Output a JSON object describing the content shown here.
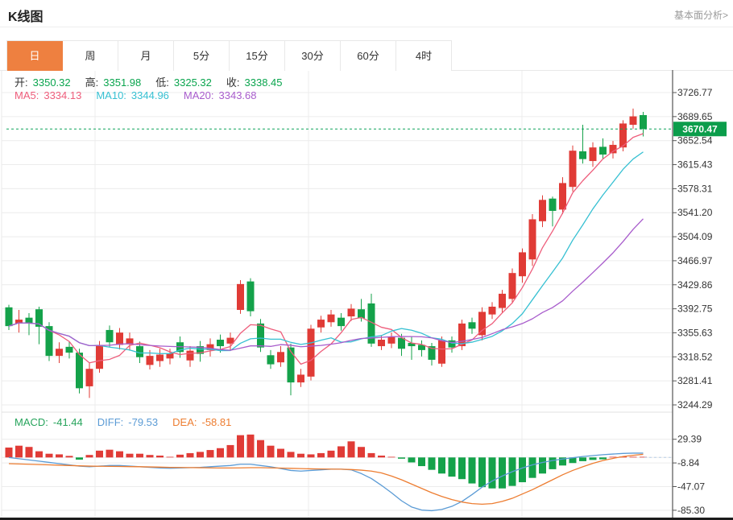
{
  "header": {
    "title": "K线图",
    "link": "基本面分析>"
  },
  "tabs": {
    "active_index": 0,
    "items": [
      {
        "label": "日"
      },
      {
        "label": "周"
      },
      {
        "label": "月"
      },
      {
        "label": "5分"
      },
      {
        "label": "15分"
      },
      {
        "label": "30分"
      },
      {
        "label": "60分"
      },
      {
        "label": "4时"
      }
    ]
  },
  "ohlc_legend": {
    "items": [
      {
        "label": "开:",
        "value": "3350.32"
      },
      {
        "label": "高:",
        "value": "3351.98"
      },
      {
        "label": "低:",
        "value": "3325.32"
      },
      {
        "label": "收:",
        "value": "3338.45"
      }
    ],
    "value_color": "#0aa54e"
  },
  "ma_legend": {
    "items": [
      {
        "label": "MA5:",
        "value": "3334.13",
        "color": "#ee5d7b"
      },
      {
        "label": "MA10:",
        "value": "3344.96",
        "color": "#36c0d2"
      },
      {
        "label": "MA20:",
        "value": "3343.68",
        "color": "#a85ccc"
      }
    ]
  },
  "macd_legend": {
    "items": [
      {
        "label": "MACD:",
        "value": "-41.44",
        "color": "#27a45c"
      },
      {
        "label": "DIFF:",
        "value": "-79.53",
        "color": "#5b9bd5"
      },
      {
        "label": "DEA:",
        "value": "-58.81",
        "color": "#ed7d31"
      }
    ]
  },
  "price_tag": {
    "value": "3670.47"
  },
  "chart_data": {
    "type": "candlestick+macd",
    "up_means_red": true,
    "price_axis": {
      "labels": [
        "3726.77",
        "3689.65",
        "3652.54",
        "3615.43",
        "3578.31",
        "3541.20",
        "3504.09",
        "3466.97",
        "3429.86",
        "3392.75",
        "3355.63",
        "3318.52",
        "3281.41",
        "3244.29"
      ],
      "range": [
        3244.29,
        3726.77
      ]
    },
    "macd_axis": {
      "labels": [
        "29.39",
        "-8.84",
        "-47.07",
        "-85.30"
      ],
      "values": [
        29.39,
        -8.84,
        -47.07,
        -85.3
      ]
    },
    "current_price": 3670.47,
    "candles_ohlc": [
      [
        3395,
        3399,
        3360,
        3366
      ],
      [
        3370,
        3391,
        3356,
        3376
      ],
      [
        3379,
        3386,
        3352,
        3370
      ],
      [
        3392,
        3396,
        3338,
        3365
      ],
      [
        3366,
        3372,
        3312,
        3320
      ],
      [
        3320,
        3341,
        3309,
        3331
      ],
      [
        3334,
        3342,
        3316,
        3325
      ],
      [
        3325,
        3331,
        3262,
        3270
      ],
      [
        3273,
        3310,
        3255,
        3300
      ],
      [
        3300,
        3343,
        3294,
        3337
      ],
      [
        3360,
        3367,
        3334,
        3341
      ],
      [
        3337,
        3363,
        3330,
        3356
      ],
      [
        3338,
        3356,
        3328,
        3347
      ],
      [
        3335,
        3342,
        3309,
        3318
      ],
      [
        3306,
        3329,
        3299,
        3320
      ],
      [
        3312,
        3331,
        3303,
        3322
      ],
      [
        3316,
        3331,
        3307,
        3324
      ],
      [
        3341,
        3350,
        3317,
        3326
      ],
      [
        3313,
        3335,
        3303,
        3328
      ],
      [
        3335,
        3343,
        3311,
        3323
      ],
      [
        3329,
        3347,
        3319,
        3338
      ],
      [
        3345,
        3353,
        3325,
        3335
      ],
      [
        3339,
        3356,
        3329,
        3348
      ],
      [
        3391,
        3437,
        3385,
        3431
      ],
      [
        3435,
        3440,
        3381,
        3389
      ],
      [
        3370,
        3377,
        3326,
        3333
      ],
      [
        3321,
        3329,
        3300,
        3307
      ],
      [
        3310,
        3335,
        3303,
        3326
      ],
      [
        3333,
        3339,
        3259,
        3279
      ],
      [
        3279,
        3300,
        3272,
        3291
      ],
      [
        3288,
        3368,
        3282,
        3362
      ],
      [
        3364,
        3382,
        3356,
        3376
      ],
      [
        3372,
        3391,
        3365,
        3384
      ],
      [
        3379,
        3386,
        3359,
        3366
      ],
      [
        3381,
        3400,
        3374,
        3393
      ],
      [
        3392,
        3408,
        3373,
        3378
      ],
      [
        3401,
        3416,
        3334,
        3339
      ],
      [
        3335,
        3352,
        3329,
        3345
      ],
      [
        3339,
        3356,
        3332,
        3349
      ],
      [
        3348,
        3354,
        3320,
        3331
      ],
      [
        3340,
        3350,
        3314,
        3335
      ],
      [
        3337,
        3344,
        3319,
        3329
      ],
      [
        3335,
        3340,
        3305,
        3314
      ],
      [
        3308,
        3350,
        3303,
        3344
      ],
      [
        3344,
        3350,
        3325,
        3333
      ],
      [
        3335,
        3376,
        3329,
        3370
      ],
      [
        3372,
        3379,
        3354,
        3362
      ],
      [
        3352,
        3395,
        3344,
        3388
      ],
      [
        3384,
        3403,
        3377,
        3396
      ],
      [
        3394,
        3422,
        3387,
        3416
      ],
      [
        3408,
        3455,
        3401,
        3448
      ],
      [
        3443,
        3486,
        3433,
        3480
      ],
      [
        3469,
        3539,
        3459,
        3531
      ],
      [
        3528,
        3568,
        3519,
        3561
      ],
      [
        3563,
        3566,
        3520,
        3544
      ],
      [
        3546,
        3596,
        3539,
        3587
      ],
      [
        3581,
        3645,
        3574,
        3637
      ],
      [
        3636,
        3677,
        3617,
        3624
      ],
      [
        3621,
        3650,
        3612,
        3642
      ],
      [
        3643,
        3656,
        3624,
        3631
      ],
      [
        3633,
        3652,
        3625,
        3646
      ],
      [
        3642,
        3684,
        3636,
        3679
      ],
      [
        3677,
        3702,
        3671,
        3690
      ],
      [
        3692,
        3697,
        3659,
        3670.47
      ]
    ],
    "ma_periods": [
      5,
      10,
      20
    ],
    "macd": {
      "hist": [
        16,
        19,
        17,
        10,
        6,
        5,
        2.5,
        -3.5,
        4,
        11,
        12.5,
        10,
        6,
        6,
        4,
        3,
        0.5,
        4.5,
        7,
        9,
        12,
        15,
        20,
        36,
        37,
        28,
        19,
        14,
        9,
        6,
        5,
        7,
        11,
        18,
        26,
        17,
        7,
        3,
        1,
        -2,
        -8,
        -14,
        -20,
        -26,
        -31,
        -35,
        -42,
        -48,
        -50,
        -50,
        -46,
        -40,
        -33,
        -26,
        -19,
        -13,
        -9,
        -6,
        -4,
        -3,
        1,
        1.5,
        1,
        0.5
      ],
      "diff": [
        0,
        -2,
        -4,
        -6,
        -8,
        -10,
        -12,
        -14,
        -15,
        -14,
        -13,
        -13,
        -14,
        -15,
        -16,
        -17,
        -17.5,
        -17,
        -16.5,
        -16,
        -15,
        -14,
        -13,
        -11,
        -11,
        -13,
        -15,
        -18,
        -21,
        -22,
        -21,
        -20,
        -19,
        -19,
        -20,
        -26,
        -34,
        -45,
        -57,
        -70,
        -80,
        -85,
        -86,
        -84,
        -79,
        -71,
        -60,
        -48,
        -38,
        -30,
        -23,
        -17,
        -12,
        -8,
        -5,
        -2.5,
        -0.5,
        1.5,
        3,
        4.5,
        5.5,
        6.5,
        7,
        7
      ],
      "dea": [
        -10,
        -10.5,
        -11,
        -11.5,
        -12,
        -12.5,
        -13,
        -13.5,
        -14,
        -14.2,
        -14.4,
        -14.6,
        -14.8,
        -15,
        -15.3,
        -15.6,
        -16,
        -16.2,
        -16.4,
        -16.6,
        -16.8,
        -17,
        -17,
        -16.8,
        -16.5,
        -16.5,
        -16.8,
        -17.2,
        -17.6,
        -18,
        -18.4,
        -18.6,
        -18.8,
        -19,
        -19.5,
        -20.5,
        -22,
        -25,
        -30,
        -36,
        -43,
        -50,
        -57,
        -63,
        -68,
        -72,
        -74.5,
        -75.5,
        -74.5,
        -71,
        -66,
        -59,
        -52,
        -44,
        -36,
        -28,
        -21,
        -15,
        -9.5,
        -5,
        -1.5,
        1.5,
        3.5,
        5
      ]
    },
    "colors": {
      "up": "#e03b36",
      "down": "#14a24a",
      "ma5": "#ee5d7b",
      "ma10": "#36c0d2",
      "ma20": "#a85ccc",
      "diff": "#5b9bd5",
      "dea": "#ed7d31",
      "price_line": "#0ea45a",
      "tag_bg": "#0b9d4b",
      "grid": "#ececec",
      "axis": "#555555",
      "label": "#333333",
      "accent_tab": "#ee8040"
    }
  }
}
